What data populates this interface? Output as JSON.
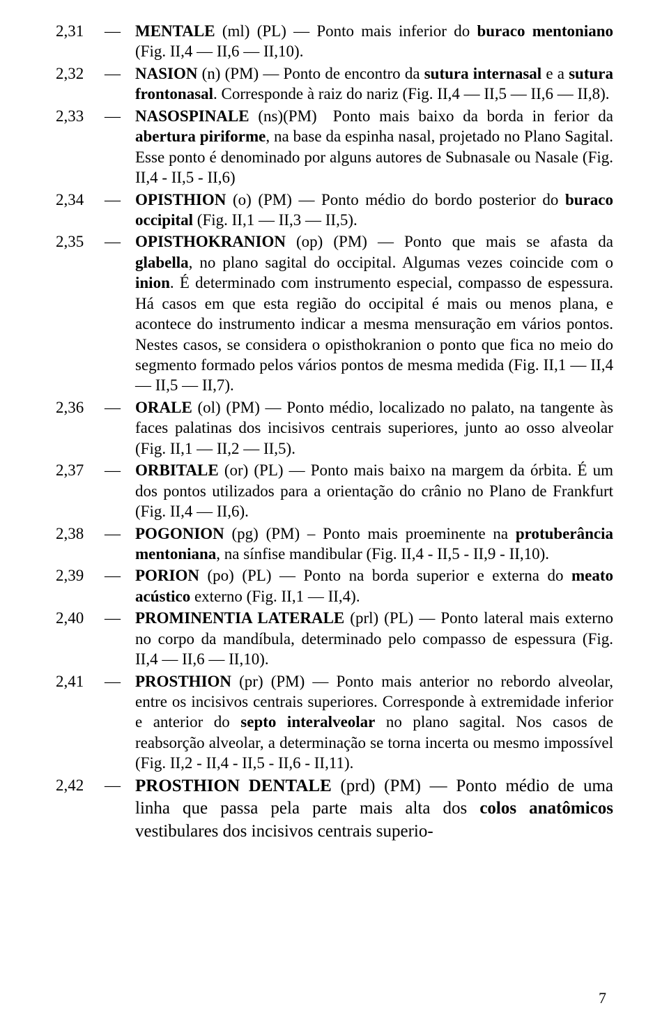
{
  "entries": [
    {
      "num": "2,31",
      "dash": "—",
      "parts": [
        {
          "t": "MENTALE",
          "b": true
        },
        {
          "t": " (ml) (PL) — Ponto mais inferior do "
        },
        {
          "t": "buraco mentoniano",
          "b": true
        },
        {
          "t": " (Fig. II,4 — II,6 — II,10)."
        }
      ]
    },
    {
      "num": "2,32",
      "dash": "—",
      "parts": [
        {
          "t": "NASION",
          "b": true
        },
        {
          "t": " (n) (PM) — Ponto de encontro da "
        },
        {
          "t": "sutura internasal",
          "b": true
        },
        {
          "t": " e a "
        },
        {
          "t": "sutura frontonasal",
          "b": true
        },
        {
          "t": ". Corresponde à raiz do nariz (Fig. II,4 — II,5 — II,6 — II,8)."
        }
      ]
    },
    {
      "num": "2,33",
      "dash": "—",
      "parts": [
        {
          "t": "NASOSPINALE",
          "b": true
        },
        {
          "t": " (ns)(PM) Ponto mais baixo da borda in ferior da "
        },
        {
          "t": "abertura piriforme",
          "b": true
        },
        {
          "t": ", na base da espinha nasal, projetado no Plano Sagital. Esse ponto é denominado por alguns autores de Subnasale ou Nasale (Fig. II,4 - II,5 - II,6)"
        }
      ]
    },
    {
      "num": "2,34",
      "dash": "—",
      "parts": [
        {
          "t": "OPISTHION",
          "b": true
        },
        {
          "t": " (o) (PM) — Ponto médio do bordo posterior do "
        },
        {
          "t": "buraco occipital",
          "b": true
        },
        {
          "t": " (Fig. II,1 — II,3 — II,5)."
        }
      ]
    },
    {
      "num": "2,35",
      "dash": "—",
      "parts": [
        {
          "t": "OPISTHOKRANION",
          "b": true
        },
        {
          "t": " (op) (PM) — Ponto que mais se afasta da "
        },
        {
          "t": "glabella",
          "b": true
        },
        {
          "t": ", no plano sagital do occipital. Algumas vezes coincide com o "
        },
        {
          "t": "inion",
          "b": true
        },
        {
          "t": ". É determinado com instrumento especial, compasso de espessura. Há casos em que esta região do occipital é mais ou menos plana, e acontece do instrumento indicar a mesma mensuração em vários pontos. Nestes casos, se considera o opisthokranion o ponto que fica no meio do segmento formado pelos vários pontos de mesma medida (Fig. II,1 — II,4 — II,5 — II,7)."
        }
      ]
    },
    {
      "num": "2,36",
      "dash": "—",
      "parts": [
        {
          "t": "ORALE",
          "b": true
        },
        {
          "t": " (ol) (PM) — Ponto médio, localizado no palato, na tangente às faces palatinas dos incisivos centrais superiores, junto ao osso alveolar (Fig. II,1 — II,2 — II,5)."
        }
      ]
    },
    {
      "num": "2,37",
      "dash": "—",
      "parts": [
        {
          "t": "ORBITALE",
          "b": true
        },
        {
          "t": " (or) (PL) — Ponto mais baixo na margem da órbita. É um dos pontos utilizados para a orientação do crânio no Plano de Frankfurt (Fig. II,4 — II,6)."
        }
      ]
    },
    {
      "num": "2,38",
      "dash": "—",
      "parts": [
        {
          "t": "POGONION",
          "b": true
        },
        {
          "t": " (pg) (PM) – Ponto mais proeminente na "
        },
        {
          "t": "protuberância mentoniana",
          "b": true
        },
        {
          "t": ", na sínfise mandibular (Fig. II,4 - II,5 - II,9 - II,10)."
        }
      ]
    },
    {
      "num": "2,39",
      "dash": "—",
      "parts": [
        {
          "t": "PORION",
          "b": true
        },
        {
          "t": " (po) (PL) — Ponto na borda superior e externa do "
        },
        {
          "t": "meato acústico",
          "b": true
        },
        {
          "t": " externo (Fig. II,1 — II,4)."
        }
      ]
    },
    {
      "num": "2,40",
      "dash": "—",
      "parts": [
        {
          "t": "PROMINENTIA LATERALE",
          "b": true
        },
        {
          "t": " (prl) (PL) — Ponto lateral mais externo no corpo da mandíbula, determinado pelo compasso de espessura (Fig. II,4 — II,6 — II,10)."
        }
      ]
    },
    {
      "num": "2,41",
      "dash": "—",
      "parts": [
        {
          "t": "PROSTHION",
          "b": true
        },
        {
          "t": " (pr) (PM) — Ponto mais anterior no rebordo alveolar, entre os incisivos centrais superiores. Corresponde à extremidade inferior e anterior do "
        },
        {
          "t": "septo interalveolar",
          "b": true
        },
        {
          "t": " no plano sagital. Nos casos de reabsorção alveolar, a determinação se torna incerta ou mesmo impossível (Fig. II,2 - II,4 - II,5 - II,6 - II,11)."
        }
      ]
    },
    {
      "num": "2,42",
      "dash": "—",
      "last": true,
      "parts": [
        {
          "t": "PROSTHION DENTALE",
          "b": true
        },
        {
          "t": " (prd) (PM) — Ponto médio de uma linha que passa pela parte mais alta dos "
        },
        {
          "t": "colos anatômicos",
          "b": true
        },
        {
          "t": " vestibulares dos incisivos centrais superio-"
        }
      ]
    }
  ],
  "page_number": "7"
}
